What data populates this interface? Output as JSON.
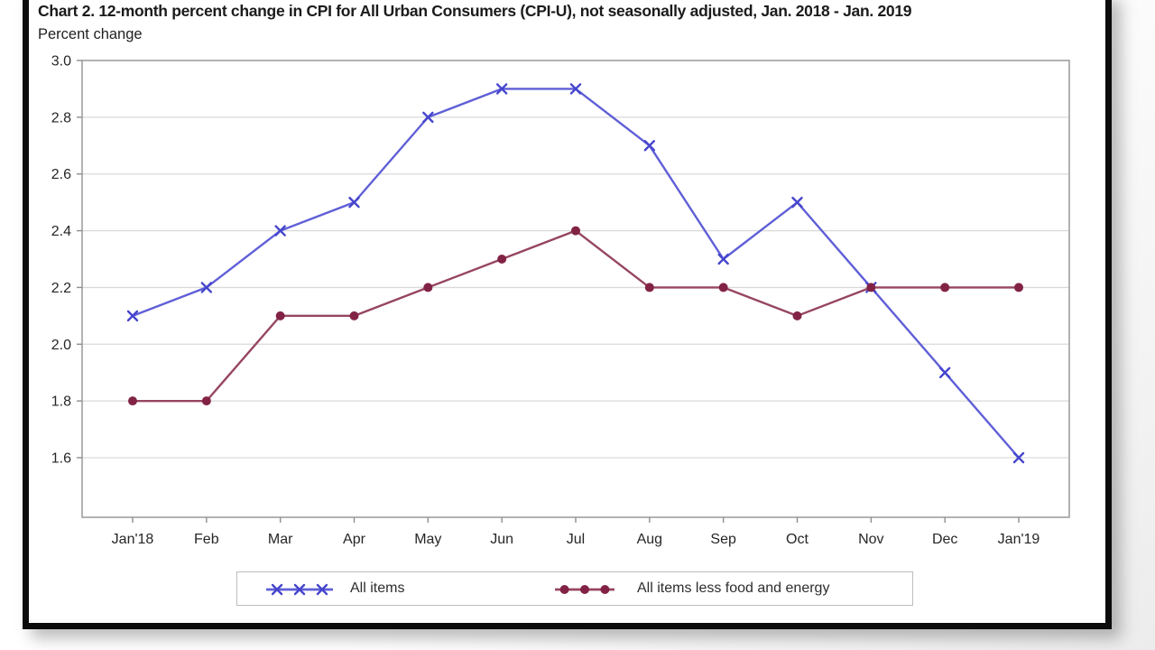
{
  "chart_data": {
    "type": "line",
    "title": "Chart 2. 12-month percent change in CPI for All Urban Consumers (CPI-U), not seasonally adjusted, Jan. 2018 - Jan. 2019",
    "ylabel": "Percent change",
    "xlabel": "",
    "categories": [
      "Jan'18",
      "Feb",
      "Mar",
      "Apr",
      "May",
      "Jun",
      "Jul",
      "Aug",
      "Sep",
      "Oct",
      "Nov",
      "Dec",
      "Jan'19"
    ],
    "series": [
      {
        "name": "All items",
        "marker": "x",
        "line_color": "#5f5fd7",
        "marker_color": "#4545cd",
        "values": [
          2.1,
          2.2,
          2.4,
          2.5,
          2.8,
          2.9,
          2.9,
          2.7,
          2.3,
          2.5,
          2.2,
          1.9,
          1.6
        ]
      },
      {
        "name": "All items less food and energy",
        "marker": "dot",
        "line_color": "#96465f",
        "marker_color": "#822346",
        "values": [
          1.8,
          1.8,
          2.1,
          2.1,
          2.2,
          2.3,
          2.4,
          2.2,
          2.2,
          2.1,
          2.2,
          2.2,
          2.2
        ]
      }
    ],
    "yticks": [
      3.0,
      2.8,
      2.6,
      2.4,
      2.2,
      2.0,
      1.8,
      1.6
    ],
    "ytick_labels": [
      "3.0",
      "2.8",
      "2.6",
      "2.4",
      "2.2",
      "2.0",
      "1.8",
      "1.6"
    ],
    "ylim": [
      1.39,
      3.0
    ],
    "grid": "horizontal",
    "legend_position": "bottom",
    "colors": {
      "gridline": "#d9d9d9",
      "plot_border": "#9f9f9f",
      "tick_mark": "#8f8f8f",
      "panel_border": "#0c0c0c"
    }
  }
}
